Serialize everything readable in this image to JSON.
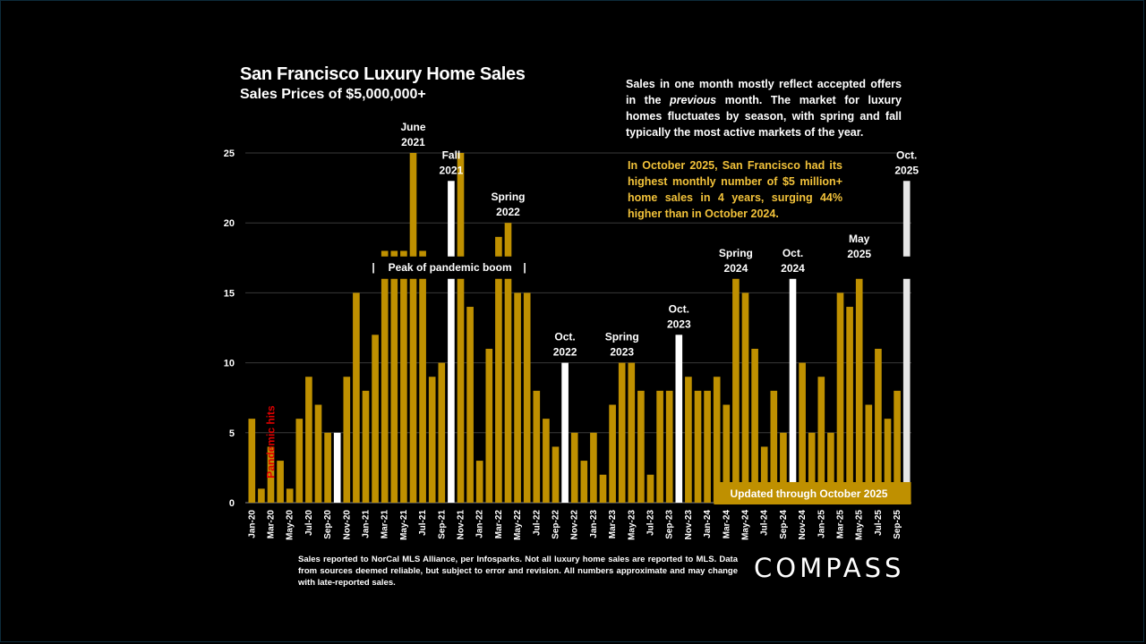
{
  "header": {
    "title": "San Francisco Luxury Home Sales",
    "subtitle": "Sales Prices of $5,000,000+"
  },
  "note": {
    "part1": "Sales in one month mostly reflect accepted offers in the ",
    "emph": "previous",
    "part2": " month. The market for luxury homes fluctuates by season, with spring and fall typically the most active markets of the year."
  },
  "highlight": "In October 2025, San Francisco had its highest monthly number of $5 million+ home sales in 4 years, surging 44% higher than in October 2024.",
  "footnote": "Sales reported to NorCal MLS Alliance, per  Infosparks. Not all luxury home sales are reported to MLS. Data from sources deemed reliable, but subject to error and revision. All numbers approximate and may change with late-reported sales.",
  "logo": "COMPASS",
  "colors": {
    "bar": "#bf9000",
    "october": "#ffffff",
    "latest": "#e6e6e6",
    "highlight_text": "#f2c23a",
    "pandemic_text": "#e00000",
    "gridline": "#3a3a3a"
  },
  "chart_data": {
    "type": "bar",
    "title": "San Francisco Luxury Home Sales",
    "subtitle": "Sales Prices of $5,000,000+",
    "xlabel": "",
    "ylabel": "",
    "ylim": [
      0,
      25
    ],
    "yticks": [
      0,
      5,
      10,
      15,
      20,
      25
    ],
    "grid": true,
    "axis_break": "y-axis broken between ~16 and ~17.5 for bars exceeding 16",
    "categories": [
      "Jan-20",
      "Feb-20",
      "Mar-20",
      "Apr-20",
      "May-20",
      "Jun-20",
      "Jul-20",
      "Aug-20",
      "Sep-20",
      "Oct-20",
      "Nov-20",
      "Dec-20",
      "Jan-21",
      "Feb-21",
      "Mar-21",
      "Apr-21",
      "May-21",
      "Jun-21",
      "Jul-21",
      "Aug-21",
      "Sep-21",
      "Oct-21",
      "Nov-21",
      "Dec-21",
      "Jan-22",
      "Feb-22",
      "Mar-22",
      "Apr-22",
      "May-22",
      "Jun-22",
      "Jul-22",
      "Aug-22",
      "Sep-22",
      "Oct-22",
      "Nov-22",
      "Dec-22",
      "Jan-23",
      "Feb-23",
      "Mar-23",
      "Apr-23",
      "May-23",
      "Jun-23",
      "Jul-23",
      "Aug-23",
      "Sep-23",
      "Oct-23",
      "Nov-23",
      "Dec-23",
      "Jan-24",
      "Feb-24",
      "Mar-24",
      "Apr-24",
      "May-24",
      "Jun-24",
      "Jul-24",
      "Aug-24",
      "Sep-24",
      "Oct-24",
      "Nov-24",
      "Dec-24",
      "Jan-25",
      "Feb-25",
      "Mar-25",
      "Apr-25",
      "May-25",
      "Jun-25",
      "Jul-25",
      "Aug-25",
      "Sep-25",
      "Oct-25"
    ],
    "xtick_labels": [
      "Jan-20",
      "Mar-20",
      "May-20",
      "Jul-20",
      "Sep-20",
      "Nov-20",
      "Jan-21",
      "Mar-21",
      "May-21",
      "Jul-21",
      "Sep-21",
      "Nov-21",
      "Jan-22",
      "Mar-22",
      "May-22",
      "Jul-22",
      "Sep-22",
      "Nov-22",
      "Jan-23",
      "Mar-23",
      "May-23",
      "Jul-23",
      "Sep-23",
      "Nov-23",
      "Jan-24",
      "Mar-24",
      "May-24",
      "Jul-24",
      "Sep-24",
      "Nov-24",
      "Jan-25",
      "Mar-25",
      "May-25",
      "Jul-25",
      "Sep-25"
    ],
    "values": [
      6,
      1,
      4,
      3,
      1,
      6,
      9,
      7,
      5,
      5,
      9,
      15,
      8,
      12,
      18,
      18,
      18,
      25,
      18,
      9,
      10,
      23,
      25,
      14,
      3,
      11,
      19,
      20,
      15,
      15,
      8,
      6,
      4,
      10,
      5,
      3,
      5,
      2,
      7,
      10,
      10,
      8,
      2,
      8,
      8,
      12,
      9,
      8,
      8,
      9,
      7,
      16,
      15,
      11,
      4,
      8,
      5,
      16,
      10,
      5,
      9,
      5,
      15,
      14,
      17,
      7,
      11,
      6,
      8,
      23
    ],
    "capped_at_axis_max": [
      "Jun-21",
      "Nov-21"
    ],
    "highlighted_october": [
      "Oct-20",
      "Oct-21",
      "Oct-22",
      "Oct-23",
      "Oct-24"
    ],
    "latest": "Oct-25",
    "annotations": [
      {
        "at": "Jun-21",
        "lines": [
          "June",
          "2021"
        ]
      },
      {
        "at": "Oct-21",
        "lines": [
          "Fall",
          "2021"
        ]
      },
      {
        "at": "Apr-22",
        "lines": [
          "Spring",
          "2022"
        ]
      },
      {
        "at": "Oct-22",
        "lines": [
          "Oct.",
          "2022"
        ]
      },
      {
        "at": "Apr-23",
        "lines": [
          "Spring",
          "2023"
        ]
      },
      {
        "at": "Oct-23",
        "lines": [
          "Oct.",
          "2023"
        ]
      },
      {
        "at": "Apr-24",
        "lines": [
          "Spring",
          "2024"
        ]
      },
      {
        "at": "Oct-24",
        "lines": [
          "Oct.",
          "2024"
        ]
      },
      {
        "at": "May-25",
        "lines": [
          "May",
          "2025"
        ]
      },
      {
        "at": "Oct-25",
        "lines": [
          "Oct.",
          "2025"
        ]
      }
    ],
    "pandemic_label": "Pandemic hits",
    "pandemic_at": "Mar-20",
    "peak_label": "Peak of pandemic boom",
    "peak_range": [
      "Feb-21",
      "May-22"
    ],
    "updated_banner": "Updated through October 2025",
    "updated_range": [
      "Feb-24",
      "Oct-25"
    ]
  }
}
